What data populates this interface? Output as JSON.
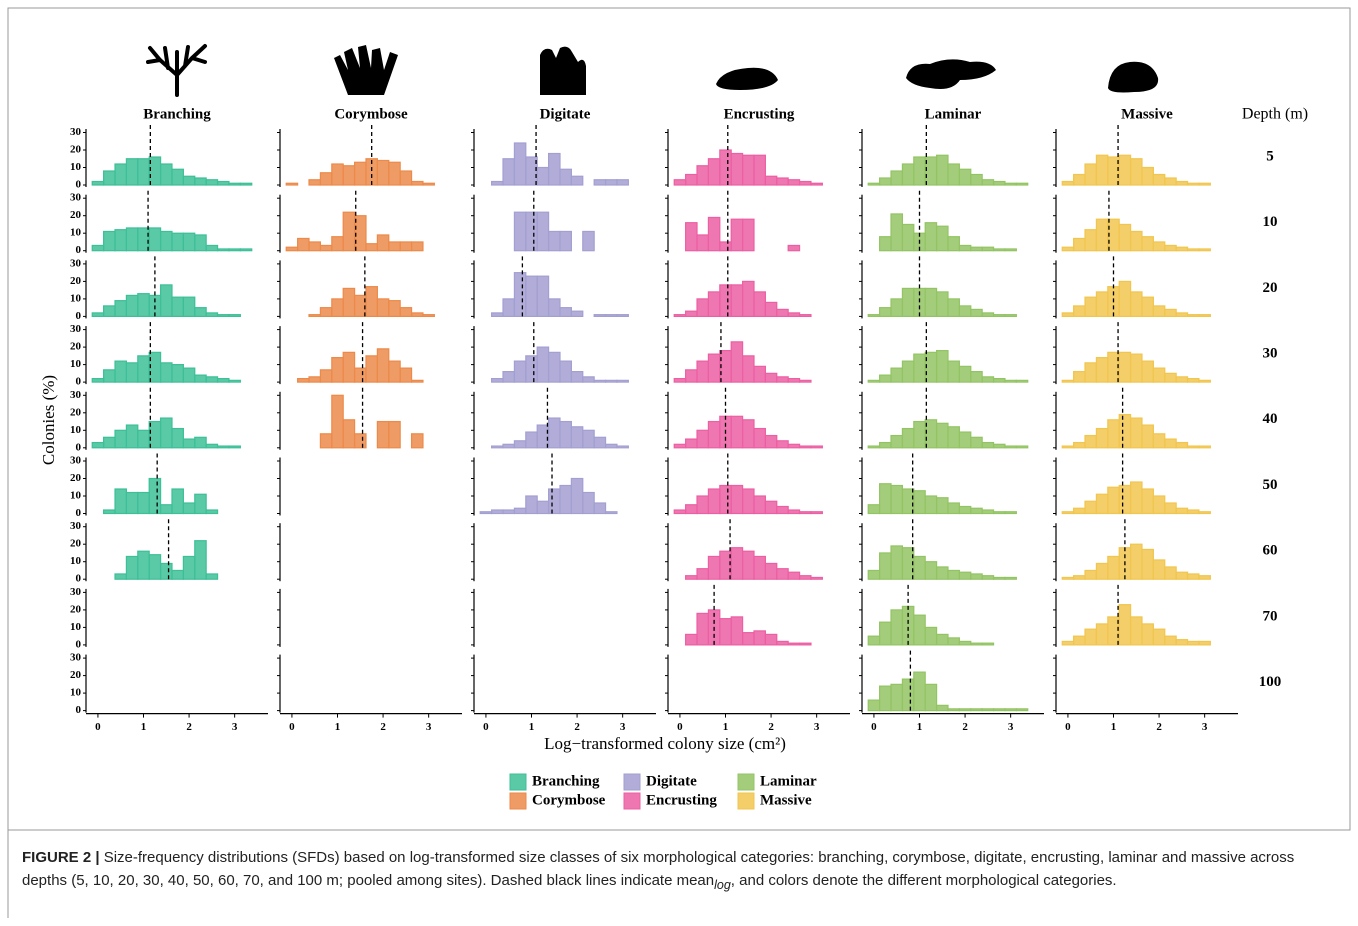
{
  "chart_data": {
    "type": "histogram",
    "xlabel": "Log−transformed colony size (cm²)",
    "ylabel": "Colonies (%)",
    "depth_title": "Depth (m)",
    "depths": [
      5,
      10,
      20,
      30,
      40,
      50,
      60,
      70,
      100
    ],
    "bins": [
      -0.125,
      0.125,
      0.375,
      0.625,
      0.875,
      1.125,
      1.375,
      1.625,
      1.875,
      2.125,
      2.375,
      2.625,
      2.875,
      3.125,
      3.375,
      3.625
    ],
    "xlim": [
      -0.13,
      3.6
    ],
    "xticks": [
      0,
      1,
      2,
      3
    ],
    "ylim": [
      0,
      32
    ],
    "yticks": [
      0,
      10,
      20,
      30
    ],
    "series": [
      {
        "name": "Branching",
        "color": "#3dbf97",
        "panels": [
          {
            "values": [
              2,
              8,
              12,
              15,
              15,
              16,
              12,
              9,
              5,
              4,
              3,
              2,
              1,
              1,
              0
            ],
            "mean": 1.15
          },
          {
            "values": [
              3,
              11,
              12,
              13,
              13,
              13,
              11,
              10,
              10,
              9,
              3,
              1,
              1,
              1,
              0
            ],
            "mean": 1.1
          },
          {
            "values": [
              2,
              6,
              9,
              12,
              13,
              12,
              18,
              11,
              11,
              5,
              2,
              1,
              1,
              0,
              0
            ],
            "mean": 1.25
          },
          {
            "values": [
              2,
              7,
              12,
              11,
              15,
              17,
              11,
              10,
              8,
              4,
              3,
              2,
              1,
              0,
              0
            ],
            "mean": 1.15
          },
          {
            "values": [
              3,
              6,
              10,
              13,
              10,
              15,
              17,
              11,
              5,
              6,
              2,
              1,
              1,
              0,
              0
            ],
            "mean": 1.15
          },
          {
            "values": [
              0,
              2,
              14,
              12,
              12,
              20,
              5,
              14,
              6,
              11,
              2,
              0,
              0,
              0,
              0
            ],
            "mean": 1.3
          },
          {
            "values": [
              0,
              0,
              3,
              13,
              16,
              14,
              9,
              5,
              13,
              22,
              3,
              0,
              0,
              0,
              0
            ],
            "mean": 1.55
          },
          null,
          null
        ]
      },
      {
        "name": "Corymbose",
        "color": "#ec8a4a",
        "panels": [
          {
            "values": [
              1,
              0,
              3,
              7,
              12,
              11,
              13,
              15,
              14,
              13,
              8,
              2,
              1,
              0,
              0
            ],
            "mean": 1.75
          },
          {
            "values": [
              2,
              7,
              5,
              3,
              8,
              22,
              20,
              4,
              9,
              5,
              5,
              5,
              0,
              0,
              0
            ],
            "mean": 1.4
          },
          {
            "values": [
              0,
              0,
              1,
              5,
              10,
              16,
              12,
              17,
              10,
              9,
              5,
              2,
              1,
              0,
              0
            ],
            "mean": 1.6
          },
          {
            "values": [
              0,
              2,
              3,
              7,
              14,
              17,
              8,
              15,
              19,
              12,
              8,
              1,
              0,
              0,
              0
            ],
            "mean": 1.55
          },
          {
            "values": [
              0,
              0,
              0,
              8,
              30,
              16,
              8,
              0,
              15,
              15,
              0,
              8,
              0,
              0,
              0
            ],
            "mean": 1.55
          },
          null,
          null,
          null,
          null
        ]
      },
      {
        "name": "Digitate",
        "color": "#a39fd1",
        "panels": [
          {
            "values": [
              0,
              2,
              15,
              24,
              16,
              10,
              18,
              9,
              5,
              0,
              3,
              3,
              3,
              0,
              0
            ],
            "mean": 1.1
          },
          {
            "values": [
              0,
              0,
              0,
              22,
              22,
              22,
              11,
              11,
              0,
              11,
              0,
              0,
              0,
              0,
              0
            ],
            "mean": 1.05
          },
          {
            "values": [
              0,
              2,
              10,
              25,
              23,
              23,
              10,
              5,
              3,
              0,
              1,
              1,
              1,
              0,
              0
            ],
            "mean": 0.8
          },
          {
            "values": [
              0,
              2,
              6,
              12,
              15,
              20,
              17,
              12,
              6,
              3,
              1,
              1,
              1,
              0,
              0
            ],
            "mean": 1.05
          },
          {
            "values": [
              0,
              1,
              2,
              4,
              9,
              13,
              17,
              15,
              12,
              10,
              6,
              2,
              1,
              0,
              0
            ],
            "mean": 1.35
          },
          {
            "values": [
              1,
              2,
              2,
              3,
              10,
              7,
              14,
              16,
              20,
              12,
              6,
              1,
              0,
              0,
              0
            ],
            "mean": 1.45
          },
          null,
          null,
          null
        ]
      },
      {
        "name": "Encrusting",
        "color": "#ec5fa3",
        "panels": [
          {
            "values": [
              3,
              6,
              11,
              15,
              20,
              18,
              17,
              17,
              5,
              4,
              3,
              2,
              1,
              0,
              0
            ],
            "mean": 1.05
          },
          {
            "values": [
              0,
              16,
              9,
              19,
              5,
              18,
              18,
              0,
              0,
              0,
              3,
              0,
              0,
              0,
              0
            ],
            "mean": 1.05
          },
          {
            "values": [
              1,
              3,
              10,
              14,
              18,
              18,
              20,
              14,
              8,
              4,
              2,
              1,
              0,
              0,
              0
            ],
            "mean": 1.05
          },
          {
            "values": [
              2,
              7,
              12,
              16,
              18,
              23,
              15,
              9,
              5,
              3,
              2,
              1,
              0,
              0,
              0
            ],
            "mean": 0.9
          },
          {
            "values": [
              2,
              5,
              10,
              15,
              18,
              18,
              16,
              11,
              7,
              4,
              2,
              1,
              1,
              0,
              0
            ],
            "mean": 1.0
          },
          {
            "values": [
              2,
              5,
              10,
              14,
              16,
              16,
              14,
              10,
              7,
              4,
              2,
              1,
              1,
              0,
              0
            ],
            "mean": 1.05
          },
          {
            "values": [
              0,
              2,
              6,
              13,
              16,
              18,
              16,
              13,
              9,
              6,
              4,
              2,
              1,
              0,
              0
            ],
            "mean": 1.1
          },
          {
            "values": [
              0,
              6,
              18,
              20,
              15,
              16,
              7,
              8,
              6,
              2,
              1,
              1,
              0,
              0,
              0
            ],
            "mean": 0.75
          },
          null
        ]
      },
      {
        "name": "Laminar",
        "color": "#93c464",
        "panels": [
          {
            "values": [
              1,
              4,
              8,
              12,
              16,
              16,
              17,
              12,
              9,
              6,
              3,
              2,
              1,
              1,
              0
            ],
            "mean": 1.15
          },
          {
            "values": [
              0,
              8,
              21,
              15,
              10,
              16,
              14,
              8,
              3,
              2,
              2,
              1,
              1,
              0,
              0
            ],
            "mean": 1.0
          },
          {
            "values": [
              1,
              5,
              10,
              16,
              16,
              16,
              14,
              10,
              6,
              4,
              2,
              1,
              1,
              0,
              0
            ],
            "mean": 1.0
          },
          {
            "values": [
              1,
              4,
              8,
              12,
              16,
              17,
              18,
              12,
              9,
              6,
              3,
              2,
              1,
              1,
              0
            ],
            "mean": 1.15
          },
          {
            "values": [
              1,
              3,
              7,
              11,
              15,
              16,
              14,
              12,
              9,
              6,
              3,
              2,
              1,
              1,
              0
            ],
            "mean": 1.15
          },
          {
            "values": [
              5,
              17,
              16,
              14,
              13,
              10,
              9,
              6,
              4,
              3,
              2,
              1,
              1,
              0,
              0
            ],
            "mean": 0.85
          },
          {
            "values": [
              5,
              15,
              19,
              18,
              13,
              10,
              7,
              5,
              4,
              3,
              2,
              1,
              1,
              0,
              0
            ],
            "mean": 0.85
          },
          {
            "values": [
              5,
              13,
              20,
              22,
              17,
              10,
              6,
              4,
              2,
              1,
              1,
              0,
              0,
              0,
              0
            ],
            "mean": 0.75
          },
          {
            "values": [
              6,
              14,
              15,
              18,
              22,
              15,
              3,
              1,
              1,
              1,
              1,
              1,
              1,
              1,
              0
            ],
            "mean": 0.8
          }
        ]
      },
      {
        "name": "Massive",
        "color": "#f1c64f",
        "panels": [
          {
            "values": [
              2,
              6,
              12,
              17,
              16,
              17,
              15,
              10,
              6,
              4,
              2,
              1,
              1,
              0,
              0
            ],
            "mean": 1.1
          },
          {
            "values": [
              2,
              7,
              12,
              18,
              18,
              15,
              11,
              8,
              5,
              3,
              2,
              1,
              1,
              0,
              0
            ],
            "mean": 0.9
          },
          {
            "values": [
              2,
              6,
              11,
              14,
              17,
              20,
              14,
              11,
              6,
              4,
              2,
              1,
              1,
              0,
              0
            ],
            "mean": 1.0
          },
          {
            "values": [
              1,
              6,
              11,
              14,
              17,
              17,
              16,
              12,
              8,
              5,
              3,
              2,
              1,
              0,
              0
            ],
            "mean": 1.1
          },
          {
            "values": [
              1,
              3,
              7,
              11,
              16,
              19,
              17,
              13,
              8,
              5,
              3,
              1,
              1,
              0,
              0
            ],
            "mean": 1.2
          },
          {
            "values": [
              1,
              3,
              7,
              11,
              15,
              16,
              18,
              14,
              10,
              6,
              3,
              2,
              1,
              0,
              0
            ],
            "mean": 1.2
          },
          {
            "values": [
              1,
              2,
              5,
              9,
              13,
              18,
              20,
              17,
              11,
              7,
              4,
              3,
              2,
              0,
              0
            ],
            "mean": 1.25
          },
          {
            "values": [
              2,
              5,
              9,
              12,
              16,
              23,
              16,
              12,
              9,
              5,
              3,
              2,
              2,
              0,
              0
            ],
            "mean": 1.1
          },
          null
        ]
      }
    ]
  },
  "caption": {
    "label": "FIGURE 2 |",
    "text": "Size-frequency distributions (SFDs) based on log-transformed size classes of six morphological categories: branching, corymbose, digitate, encrusting, laminar and massive across depths (5, 10, 20, 30, 40, 50, 60, 70, and 100 m; pooled among sites). Dashed black lines indicate mean",
    "subscript": "log",
    "text_end": ", and colors denote the different morphological categories."
  }
}
